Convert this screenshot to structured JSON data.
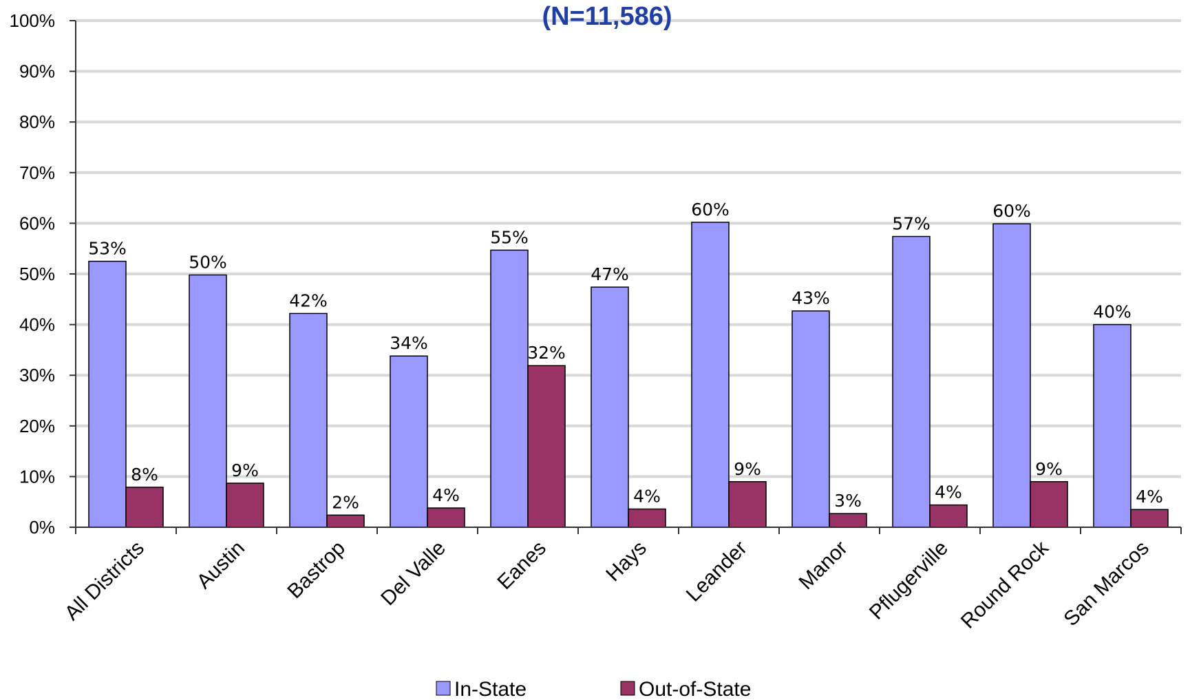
{
  "chart_data": {
    "type": "bar",
    "title": "(N=11,586)",
    "title_color": "#1f3fa5",
    "categories": [
      "All Districts",
      "Austin",
      "Bastrop",
      "Del Valle",
      "Eanes",
      "Hays",
      "Leander",
      "Manor",
      "Pflugerville",
      "Round Rock",
      "San Marcos"
    ],
    "series": [
      {
        "name": "In-State",
        "color": "#9999ff",
        "values": [
          52.5,
          49.8,
          42.2,
          33.8,
          54.7,
          47.4,
          60.2,
          42.7,
          57.4,
          59.9,
          40.0
        ],
        "labels": [
          "53%",
          "50%",
          "42%",
          "34%",
          "55%",
          "47%",
          "60%",
          "43%",
          "57%",
          "60%",
          "40%"
        ]
      },
      {
        "name": "Out-of-State",
        "color": "#993366",
        "values": [
          7.9,
          8.7,
          2.4,
          3.8,
          31.9,
          3.6,
          9.0,
          2.7,
          4.4,
          9.0,
          3.5
        ],
        "labels": [
          "8%",
          "9%",
          "2%",
          "4%",
          "32%",
          "4%",
          "9%",
          "3%",
          "4%",
          "9%",
          "4%"
        ]
      }
    ],
    "ylim": [
      0,
      100
    ],
    "yticks": [
      0,
      10,
      20,
      30,
      40,
      50,
      60,
      70,
      80,
      90,
      100
    ],
    "ytick_labels": [
      "0%",
      "10%",
      "20%",
      "30%",
      "40%",
      "50%",
      "60%",
      "70%",
      "80%",
      "90%",
      "100%"
    ],
    "grid": true,
    "gridline_color": "#d9d9d9",
    "legend_position": "bottom"
  }
}
